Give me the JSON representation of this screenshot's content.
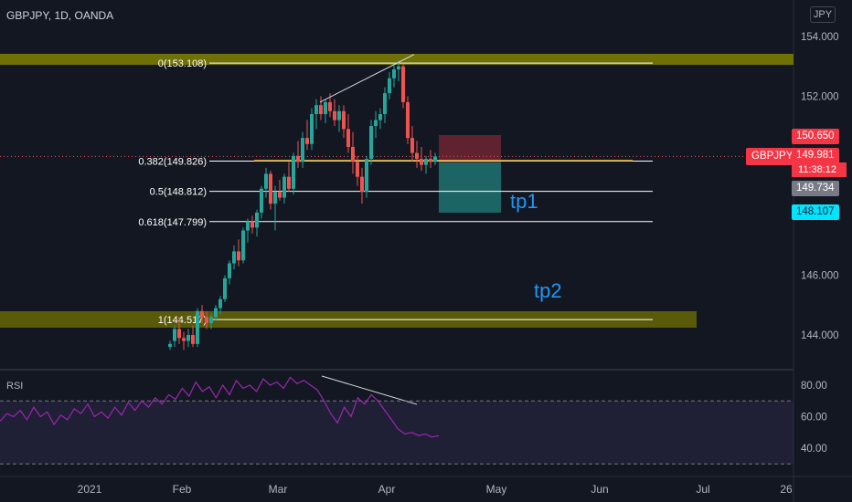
{
  "header": {
    "symbol": "GBPJPY, 1D, OANDA",
    "currency": "JPY"
  },
  "price_axis": {
    "ticks": [
      {
        "value": 154,
        "label": "154.000"
      },
      {
        "value": 152,
        "label": "152.000"
      },
      {
        "value": 146,
        "label": "146.000"
      },
      {
        "value": 144,
        "label": "144.000"
      }
    ]
  },
  "price_tags": {
    "stop": {
      "value": 150.65,
      "label": "150.650",
      "color": "#f23645"
    },
    "last": {
      "value": 149.981,
      "label": "149.981",
      "color": "#f23645"
    },
    "symbol": "GBPJPY",
    "countdown": "11:38:12",
    "entry": {
      "value": 149.734,
      "label": "149.734",
      "color": "#787b86"
    },
    "target": {
      "value": 148.107,
      "label": "148.107",
      "color": "#00e5ff"
    }
  },
  "fibonacci": [
    {
      "label": "0(153.108)",
      "value": 153.108
    },
    {
      "label": "0.382(149.826)",
      "value": 149.826
    },
    {
      "label": "0.5(148.812)",
      "value": 148.812
    },
    {
      "label": "0.618(147.799)",
      "value": 147.799
    },
    {
      "label": "1(144.517)",
      "value": 144.517
    }
  ],
  "annotations": {
    "tp1": "tp1",
    "tp2": "tp2"
  },
  "rsi": {
    "label": "RSI",
    "ticks": [
      {
        "value": 80,
        "label": "80.00"
      },
      {
        "value": 60,
        "label": "60.00"
      },
      {
        "value": 40,
        "label": "40.00"
      }
    ],
    "upper_band": 70,
    "lower_band": 30,
    "values": [
      57,
      62,
      60,
      64,
      58,
      66,
      60,
      63,
      55,
      61,
      58,
      65,
      62,
      68,
      60,
      63,
      59,
      66,
      61,
      69,
      64,
      70,
      66,
      72,
      68,
      74,
      71,
      78,
      73,
      82,
      76,
      79,
      72,
      80,
      74,
      83,
      78,
      80,
      76,
      84,
      80,
      82,
      78,
      85,
      81,
      83,
      80,
      77,
      70,
      62,
      56,
      66,
      60,
      72,
      68,
      74,
      70,
      64,
      58,
      52,
      49,
      50,
      48,
      49,
      47,
      48
    ]
  },
  "time_axis": {
    "labels": [
      "2021",
      "Feb",
      "Mar",
      "Apr",
      "May",
      "Jun",
      "Jul",
      "26"
    ]
  },
  "colors": {
    "background": "#131722",
    "up": "#26a69a",
    "down": "#ef5350",
    "zone": "#808000",
    "rsi_line": "#9c27b0",
    "tp_text": "#2196f3"
  }
}
